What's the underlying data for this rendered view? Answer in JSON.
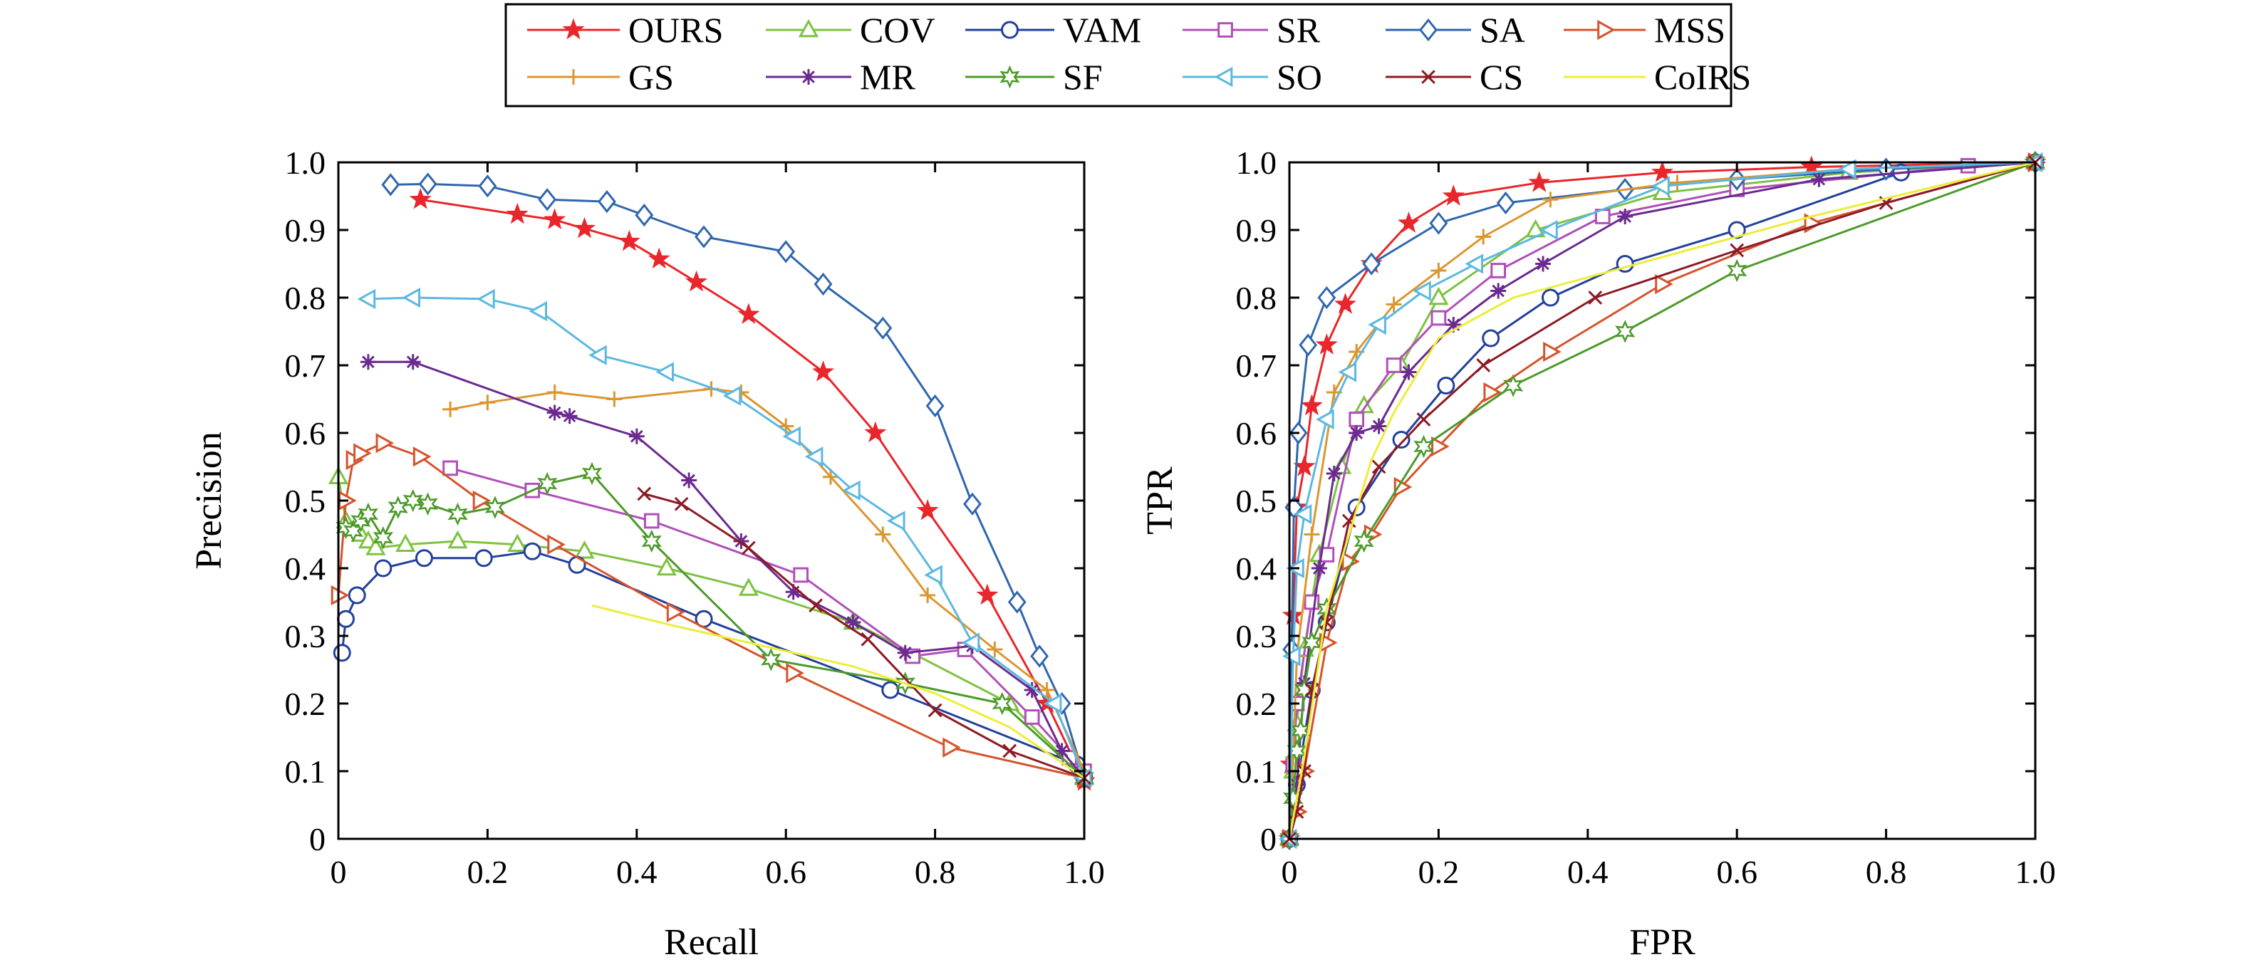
{
  "legend": {
    "entries": [
      {
        "name": "OURS",
        "color": "#e8262b",
        "marker": "star"
      },
      {
        "name": "COV",
        "color": "#7dc240",
        "marker": "triangle"
      },
      {
        "name": "VAM",
        "color": "#22409a",
        "marker": "circle"
      },
      {
        "name": "SR",
        "color": "#b04fb8",
        "marker": "square"
      },
      {
        "name": "SA",
        "color": "#2f66ad",
        "marker": "diamond"
      },
      {
        "name": "MSS",
        "color": "#d6532b",
        "marker": "triangle-right"
      },
      {
        "name": "GS",
        "color": "#dc9630",
        "marker": "plus"
      },
      {
        "name": "MR",
        "color": "#6a2a8f",
        "marker": "asterisk"
      },
      {
        "name": "SF",
        "color": "#4c9a2a",
        "marker": "hexstar"
      },
      {
        "name": "SO",
        "color": "#5cb8e0",
        "marker": "triangle-left"
      },
      {
        "name": "CS",
        "color": "#8c1a24",
        "marker": "x"
      },
      {
        "name": "CoIRS",
        "color": "#eded3a",
        "marker": "none"
      }
    ]
  },
  "chart_data": [
    {
      "type": "line",
      "xlabel": "Recall",
      "ylabel": "Precision",
      "xlim": [
        0,
        1
      ],
      "ylim": [
        0,
        1
      ],
      "xticks": [
        "0",
        "0.2",
        "0.4",
        "0.6",
        "0.8",
        "1.0"
      ],
      "yticks": [
        "0",
        "0.1",
        "0.2",
        "0.3",
        "0.4",
        "0.5",
        "0.6",
        "0.7",
        "0.8",
        "0.9",
        "1.0"
      ],
      "grid": false,
      "series": [
        {
          "name": "OURS",
          "x": [
            0.11,
            0.24,
            0.29,
            0.33,
            0.39,
            0.43,
            0.48,
            0.55,
            0.65,
            0.72,
            0.79,
            0.87,
            0.95,
            1.0
          ],
          "y": [
            0.945,
            0.923,
            0.915,
            0.902,
            0.883,
            0.857,
            0.823,
            0.775,
            0.69,
            0.6,
            0.485,
            0.36,
            0.2,
            0.085
          ]
        },
        {
          "name": "COV",
          "x": [
            0.0,
            0.01,
            0.03,
            0.04,
            0.05,
            0.09,
            0.16,
            0.24,
            0.33,
            0.44,
            0.55,
            0.69,
            0.9,
            1.0
          ],
          "y": [
            0.535,
            0.47,
            0.45,
            0.44,
            0.43,
            0.435,
            0.44,
            0.435,
            0.425,
            0.4,
            0.37,
            0.32,
            0.2,
            0.09
          ]
        },
        {
          "name": "VAM",
          "x": [
            0.005,
            0.01,
            0.025,
            0.06,
            0.115,
            0.195,
            0.26,
            0.32,
            0.49,
            0.74,
            0.99,
            1.0
          ],
          "y": [
            0.275,
            0.325,
            0.36,
            0.4,
            0.415,
            0.415,
            0.425,
            0.405,
            0.325,
            0.22,
            0.11,
            0.09
          ]
        },
        {
          "name": "SR",
          "x": [
            0.15,
            0.26,
            0.42,
            0.62,
            0.77,
            0.84,
            0.93,
            0.98,
            1.0
          ],
          "y": [
            0.548,
            0.515,
            0.47,
            0.39,
            0.27,
            0.28,
            0.18,
            0.12,
            0.1
          ]
        },
        {
          "name": "SA",
          "x": [
            0.07,
            0.12,
            0.2,
            0.28,
            0.36,
            0.41,
            0.49,
            0.6,
            0.65,
            0.73,
            0.8,
            0.85,
            0.91,
            0.94,
            0.97,
            1.0
          ],
          "y": [
            0.967,
            0.968,
            0.965,
            0.945,
            0.942,
            0.922,
            0.89,
            0.868,
            0.82,
            0.755,
            0.64,
            0.495,
            0.35,
            0.27,
            0.2,
            0.09
          ]
        },
        {
          "name": "MSS",
          "x": [
            0.0,
            0.01,
            0.02,
            0.03,
            0.06,
            0.11,
            0.19,
            0.29,
            0.45,
            0.61,
            0.82,
            1.0
          ],
          "y": [
            0.36,
            0.5,
            0.56,
            0.57,
            0.585,
            0.565,
            0.5,
            0.435,
            0.335,
            0.245,
            0.135,
            0.09
          ]
        },
        {
          "name": "GS",
          "x": [
            0.15,
            0.2,
            0.29,
            0.37,
            0.5,
            0.54,
            0.6,
            0.66,
            0.73,
            0.79,
            0.88,
            0.95,
            1.0
          ],
          "y": [
            0.635,
            0.645,
            0.66,
            0.65,
            0.665,
            0.66,
            0.61,
            0.535,
            0.45,
            0.36,
            0.28,
            0.22,
            0.1
          ]
        },
        {
          "name": "MR",
          "x": [
            0.04,
            0.1,
            0.29,
            0.31,
            0.4,
            0.47,
            0.54,
            0.61,
            0.69,
            0.76,
            0.85,
            0.93,
            0.97,
            1.0
          ],
          "y": [
            0.705,
            0.705,
            0.63,
            0.625,
            0.595,
            0.53,
            0.44,
            0.365,
            0.32,
            0.275,
            0.285,
            0.22,
            0.13,
            0.09
          ]
        },
        {
          "name": "SF",
          "x": [
            0.01,
            0.02,
            0.03,
            0.04,
            0.06,
            0.08,
            0.1,
            0.12,
            0.16,
            0.21,
            0.28,
            0.34,
            0.42,
            0.58,
            0.76,
            0.89,
            1.0
          ],
          "y": [
            0.46,
            0.455,
            0.47,
            0.48,
            0.445,
            0.49,
            0.5,
            0.495,
            0.48,
            0.49,
            0.525,
            0.54,
            0.44,
            0.265,
            0.23,
            0.2,
            0.09
          ]
        },
        {
          "name": "SO",
          "x": [
            0.04,
            0.1,
            0.2,
            0.27,
            0.35,
            0.44,
            0.53,
            0.61,
            0.64,
            0.69,
            0.75,
            0.8,
            0.85,
            0.96,
            1.0
          ],
          "y": [
            0.798,
            0.8,
            0.798,
            0.78,
            0.715,
            0.69,
            0.655,
            0.595,
            0.565,
            0.515,
            0.47,
            0.39,
            0.29,
            0.2,
            0.09
          ]
        },
        {
          "name": "CS",
          "x": [
            0.41,
            0.46,
            0.55,
            0.64,
            0.71,
            0.8,
            0.9,
            1.0
          ],
          "y": [
            0.51,
            0.495,
            0.43,
            0.345,
            0.295,
            0.19,
            0.13,
            0.09
          ]
        },
        {
          "name": "CoIRS",
          "x": [
            0.34,
            0.45,
            0.55,
            0.69,
            0.8,
            0.9,
            1.0
          ],
          "y": [
            0.345,
            0.315,
            0.29,
            0.255,
            0.215,
            0.165,
            0.09
          ]
        }
      ]
    },
    {
      "type": "line",
      "xlabel": "FPR",
      "ylabel": "TPR",
      "xlim": [
        0,
        1
      ],
      "ylim": [
        0,
        1
      ],
      "xticks": [
        "0",
        "0.2",
        "0.4",
        "0.6",
        "0.8",
        "1.0"
      ],
      "yticks": [
        "0",
        "0.1",
        "0.2",
        "0.3",
        "0.4",
        "0.5",
        "0.6",
        "0.7",
        "0.8",
        "0.9",
        "1.0"
      ],
      "grid": false,
      "series": [
        {
          "name": "OURS",
          "x": [
            0.0,
            0.002,
            0.005,
            0.01,
            0.02,
            0.03,
            0.05,
            0.075,
            0.11,
            0.16,
            0.22,
            0.335,
            0.5,
            0.7,
            1.0
          ],
          "y": [
            0.0,
            0.11,
            0.33,
            0.49,
            0.55,
            0.64,
            0.73,
            0.79,
            0.85,
            0.91,
            0.95,
            0.97,
            0.985,
            0.993,
            1.0
          ]
        },
        {
          "name": "COV",
          "x": [
            0.0,
            0.005,
            0.01,
            0.02,
            0.04,
            0.07,
            0.1,
            0.15,
            0.2,
            0.33,
            0.5,
            0.75,
            1.0
          ],
          "y": [
            0.0,
            0.1,
            0.17,
            0.28,
            0.42,
            0.55,
            0.64,
            0.7,
            0.8,
            0.9,
            0.955,
            0.985,
            1.0
          ]
        },
        {
          "name": "VAM",
          "x": [
            0.0,
            0.01,
            0.03,
            0.05,
            0.09,
            0.15,
            0.21,
            0.27,
            0.35,
            0.45,
            0.6,
            0.82,
            1.0
          ],
          "y": [
            0.0,
            0.08,
            0.22,
            0.32,
            0.49,
            0.59,
            0.67,
            0.74,
            0.8,
            0.85,
            0.9,
            0.985,
            1.0
          ]
        },
        {
          "name": "SR",
          "x": [
            0.0,
            0.005,
            0.01,
            0.03,
            0.05,
            0.09,
            0.14,
            0.2,
            0.28,
            0.42,
            0.6,
            0.91,
            1.0
          ],
          "y": [
            0.0,
            0.11,
            0.2,
            0.35,
            0.42,
            0.62,
            0.7,
            0.77,
            0.84,
            0.92,
            0.96,
            0.995,
            1.0
          ]
        },
        {
          "name": "SA",
          "x": [
            0.0,
            0.003,
            0.006,
            0.012,
            0.025,
            0.05,
            0.11,
            0.2,
            0.29,
            0.45,
            0.6,
            0.8,
            1.0
          ],
          "y": [
            0.0,
            0.28,
            0.49,
            0.6,
            0.73,
            0.8,
            0.85,
            0.91,
            0.94,
            0.96,
            0.975,
            0.99,
            1.0
          ]
        },
        {
          "name": "MSS",
          "x": [
            0.0,
            0.01,
            0.02,
            0.05,
            0.08,
            0.11,
            0.15,
            0.2,
            0.27,
            0.35,
            0.5,
            0.7,
            1.0
          ],
          "y": [
            0.0,
            0.04,
            0.1,
            0.29,
            0.41,
            0.45,
            0.52,
            0.58,
            0.66,
            0.72,
            0.82,
            0.91,
            1.0
          ]
        },
        {
          "name": "GS",
          "x": [
            0.0,
            0.005,
            0.01,
            0.03,
            0.06,
            0.09,
            0.14,
            0.2,
            0.26,
            0.35,
            0.52,
            0.75,
            1.0
          ],
          "y": [
            0.0,
            0.12,
            0.27,
            0.45,
            0.66,
            0.72,
            0.79,
            0.84,
            0.89,
            0.945,
            0.97,
            0.99,
            1.0
          ]
        },
        {
          "name": "MR",
          "x": [
            0.0,
            0.01,
            0.02,
            0.04,
            0.06,
            0.09,
            0.12,
            0.16,
            0.22,
            0.28,
            0.34,
            0.45,
            0.71,
            1.0
          ],
          "y": [
            0.0,
            0.08,
            0.23,
            0.4,
            0.54,
            0.6,
            0.61,
            0.69,
            0.76,
            0.81,
            0.85,
            0.92,
            0.975,
            1.0
          ]
        },
        {
          "name": "SF",
          "x": [
            0.0,
            0.005,
            0.01,
            0.015,
            0.02,
            0.03,
            0.05,
            0.1,
            0.18,
            0.3,
            0.45,
            0.6,
            1.0
          ],
          "y": [
            0.0,
            0.06,
            0.13,
            0.16,
            0.22,
            0.29,
            0.34,
            0.44,
            0.58,
            0.67,
            0.75,
            0.84,
            1.0
          ]
        },
        {
          "name": "SO",
          "x": [
            0.0,
            0.005,
            0.01,
            0.02,
            0.05,
            0.08,
            0.12,
            0.18,
            0.25,
            0.35,
            0.5,
            0.75,
            1.0
          ],
          "y": [
            0.0,
            0.27,
            0.4,
            0.48,
            0.62,
            0.69,
            0.76,
            0.81,
            0.85,
            0.9,
            0.965,
            0.99,
            1.0
          ]
        },
        {
          "name": "CS",
          "x": [
            0.0,
            0.01,
            0.02,
            0.03,
            0.05,
            0.08,
            0.12,
            0.18,
            0.26,
            0.41,
            0.6,
            0.8,
            1.0
          ],
          "y": [
            0.0,
            0.04,
            0.1,
            0.22,
            0.32,
            0.47,
            0.55,
            0.62,
            0.7,
            0.8,
            0.87,
            0.94,
            1.0
          ]
        },
        {
          "name": "CoIRS",
          "x": [
            0.0,
            0.02,
            0.05,
            0.08,
            0.11,
            0.14,
            0.2,
            0.3,
            0.5,
            0.7,
            1.0
          ],
          "y": [
            0.0,
            0.12,
            0.34,
            0.45,
            0.56,
            0.63,
            0.74,
            0.8,
            0.86,
            0.92,
            1.0
          ]
        }
      ]
    }
  ]
}
